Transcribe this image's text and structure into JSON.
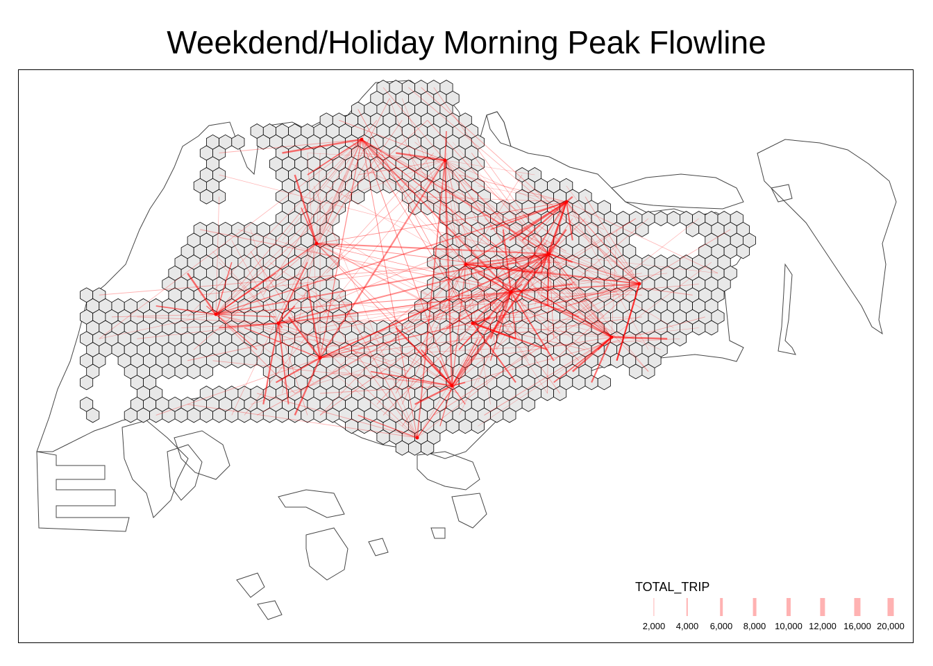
{
  "title": "Weekdend/Holiday Morning Peak Flowline",
  "colors": {
    "flow_line": "#ff0000",
    "hex_fill": "#e8e8e8",
    "hex_stroke": "#000000",
    "coast_stroke": "#444444"
  },
  "legend": {
    "title": "TOTAL_TRIP",
    "items": [
      {
        "label": "2,000",
        "value": 2000
      },
      {
        "label": "4,000",
        "value": 4000
      },
      {
        "label": "6,000",
        "value": 6000
      },
      {
        "label": "8,000",
        "value": 8000
      },
      {
        "label": "10,000",
        "value": 10000
      },
      {
        "label": "12,000",
        "value": 12000
      },
      {
        "label": "16,000",
        "value": 16000
      },
      {
        "label": "20,000",
        "value": 20000
      }
    ]
  }
}
